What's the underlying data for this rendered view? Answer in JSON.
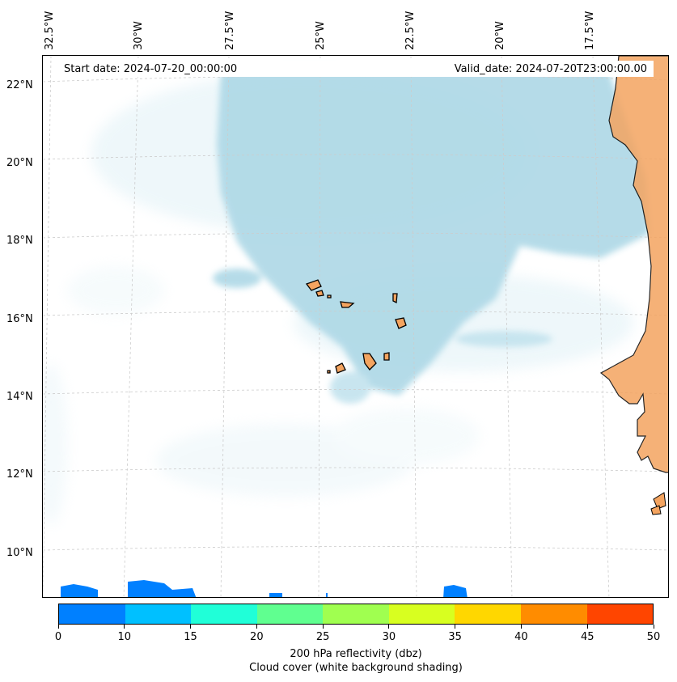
{
  "header": {
    "start_date": "Start date: 2024-07-20_00:00:00",
    "valid_date": "Valid_date: 2024-07-20T23:00:00.00"
  },
  "axes": {
    "longitude_labels": [
      "32.5°W",
      "30°W",
      "27.5°W",
      "25°W",
      "22.5°W",
      "20°W",
      "17.5°W"
    ],
    "latitude_labels": [
      "22°N",
      "20°N",
      "18°N",
      "16°N",
      "14°N",
      "12°N",
      "10°N"
    ]
  },
  "map": {
    "gridlines": true,
    "cloud_color": "#add8e6",
    "land_color": "#f4a460",
    "coastline_color": "#000000",
    "reflectivity_color": "#0080ff"
  },
  "colorbar": {
    "ticks": [
      "0",
      "10",
      "15",
      "20",
      "25",
      "30",
      "35",
      "40",
      "45",
      "50"
    ],
    "colors": [
      "#0080ff",
      "#00c0ff",
      "#20ffd8",
      "#60ff90",
      "#a0ff50",
      "#d8ff20",
      "#ffd700",
      "#ff8c00",
      "#ff4500"
    ],
    "label": "200 hPa reflectivity (dbz)",
    "sublabel": "Cloud cover (white background shading)"
  }
}
